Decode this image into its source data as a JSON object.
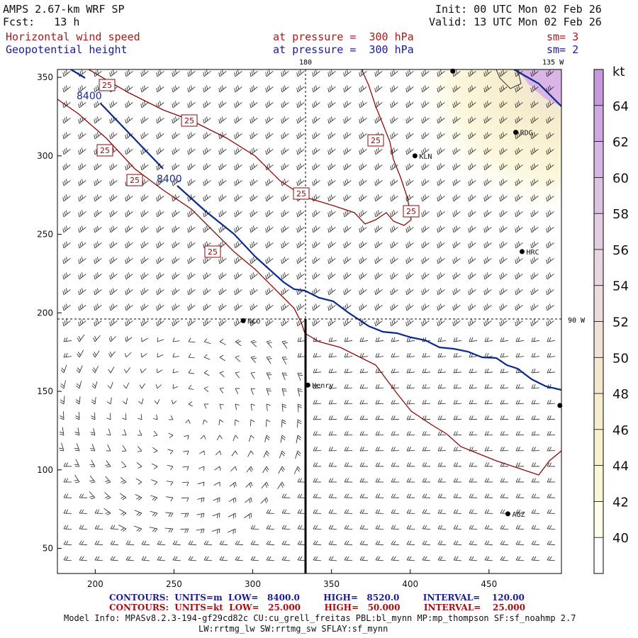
{
  "header": {
    "model": "AMPS 2.67-km WRF SP",
    "init": "Init: 00 UTC Mon 02 Feb 26",
    "fcst": "Fcst:   13 h",
    "valid": "Valid: 13 UTC Mon 02 Feb 26",
    "field1_name": "Horizontal wind speed",
    "field1_level": "at pressure =  300 hPa",
    "field1_sm": "sm= 3",
    "field2_name": "Geopotential height",
    "field2_level": "at pressure =  300 hPa",
    "field2_sm": "sm= 2"
  },
  "map_labels": {
    "lon_180": "180",
    "lon_135w": "135 W",
    "lon_90w": "90 W",
    "stations": [
      {
        "name": "RDG",
        "x": 467,
        "y": 315
      },
      {
        "name": "KLN",
        "x": 403,
        "y": 300
      },
      {
        "name": "HRC",
        "x": 471,
        "y": 239
      },
      {
        "name": "NCO",
        "x": 294,
        "y": 195
      },
      {
        "name": "Henry",
        "x": 335,
        "y": 154
      },
      {
        "name": "AGZ",
        "x": 462,
        "y": 72
      },
      {
        "name": "",
        "x": 427,
        "y": 354
      },
      {
        "name": "",
        "x": 495,
        "y": 141
      }
    ]
  },
  "axes": {
    "x_ticks": [
      "200",
      "250",
      "300",
      "350",
      "400",
      "450"
    ],
    "y_ticks": [
      "350",
      "300",
      "250",
      "200",
      "150",
      "100",
      "50"
    ],
    "xlim": [
      176,
      496
    ],
    "ylim": [
      34,
      355
    ]
  },
  "colorbar": {
    "unit": "kt",
    "ticks": [
      "64",
      "62",
      "60",
      "58",
      "56",
      "54",
      "52",
      "50",
      "48",
      "46",
      "44",
      "42",
      "40"
    ],
    "colors": [
      "#c79ae0",
      "#cfa8e2",
      "#d6b6e3",
      "#dcc3e3",
      "#e2cde2",
      "#e7d5e0",
      "#ecdcdc",
      "#f0e2d6",
      "#f3e7d2",
      "#f6edcd",
      "#f8f2cb",
      "#fbf7d6",
      "#fefde9",
      "#ffffff"
    ]
  },
  "contours": {
    "height_label": "8400",
    "speed_label": "25"
  },
  "footer": {
    "height_line": "CONTOURS:  UNITS=m  LOW=   8400.0        HIGH=   8520.0        INTERVAL=    120.00",
    "speed_line": "CONTOURS:  UNITS=kt  LOW=   25.000        HIGH=   50.000        INTERVAL=    25.000",
    "model_info": "Model Info: MPASv8.2.3-194-gf29cd82c CU:cu_grell_freitas PBL:bl_mynn MP:mp_thompson SF:sf_noahmp 2.7",
    "model_info2": "LW:rrtmg_lw SW:rrtmg_sw SFLAY:sf_mynn"
  }
}
